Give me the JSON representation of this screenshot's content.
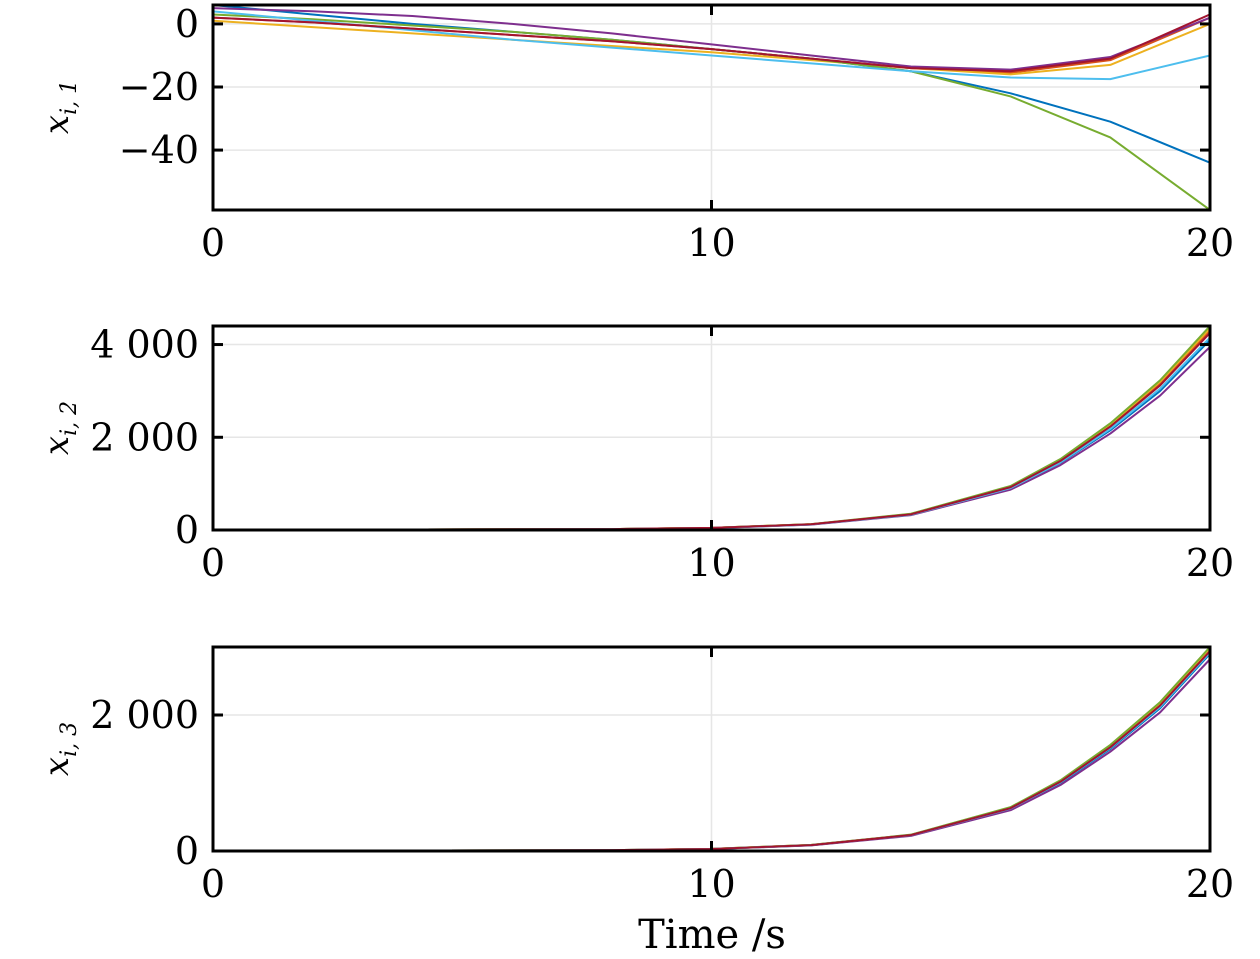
{
  "chart_data": [
    {
      "type": "line",
      "ylabel_main": "x",
      "ylabel_sub": "i, 1",
      "xlabel": "",
      "xlim": [
        0,
        20
      ],
      "ylim": [
        -59,
        6
      ],
      "grid": true,
      "xticks": [
        0,
        10,
        20
      ],
      "yticks": [
        0,
        -20,
        -40
      ],
      "xtick_labels": [
        "0",
        "10",
        "20"
      ],
      "ytick_labels": [
        "0",
        "−20",
        "−40"
      ],
      "series": [
        {
          "color": "#0072BD",
          "x": [
            0,
            2,
            4,
            6,
            8,
            10,
            12,
            14,
            16,
            18,
            20
          ],
          "y": [
            6,
            3,
            0,
            -2.5,
            -5,
            -8,
            -11,
            -15,
            -22,
            -31,
            -44
          ]
        },
        {
          "color": "#D95319",
          "x": [
            0,
            2,
            4,
            6,
            8,
            10,
            12,
            14,
            16,
            18,
            20
          ],
          "y": [
            2,
            0.5,
            -1.5,
            -3.5,
            -5.5,
            -8,
            -11,
            -14,
            -15.5,
            -11.5,
            2
          ]
        },
        {
          "color": "#EDB120",
          "x": [
            0,
            2,
            4,
            6,
            8,
            10,
            12,
            14,
            16,
            18,
            20
          ],
          "y": [
            1,
            -1,
            -3,
            -5,
            -7,
            -9,
            -11.5,
            -14,
            -16,
            -13,
            0
          ]
        },
        {
          "color": "#7E2F8E",
          "x": [
            0,
            2,
            4,
            6,
            8,
            10,
            12,
            14,
            16,
            18,
            20
          ],
          "y": [
            5,
            4,
            2.5,
            0,
            -3,
            -6.5,
            -10,
            -13.5,
            -14.5,
            -10.5,
            2
          ]
        },
        {
          "color": "#77AC30",
          "x": [
            0,
            2,
            4,
            6,
            8,
            10,
            12,
            14,
            16,
            18,
            20
          ],
          "y": [
            3,
            1.5,
            -0.5,
            -2.5,
            -5,
            -8,
            -11,
            -15,
            -23,
            -36,
            -59
          ]
        },
        {
          "color": "#4DBEEE",
          "x": [
            0,
            2,
            4,
            6,
            8,
            10,
            12,
            14,
            16,
            18,
            20
          ],
          "y": [
            4,
            1,
            -2,
            -5,
            -7.5,
            -10,
            -12.5,
            -15,
            -17,
            -17.5,
            -10
          ]
        },
        {
          "color": "#A2142F",
          "x": [
            0,
            2,
            4,
            6,
            8,
            10,
            12,
            14,
            16,
            18,
            20
          ],
          "y": [
            2,
            0.5,
            -1.5,
            -3.5,
            -5.5,
            -8,
            -11,
            -14,
            -15,
            -11,
            3
          ]
        }
      ]
    },
    {
      "type": "line",
      "ylabel_main": "x",
      "ylabel_sub": "i, 2",
      "xlabel": "",
      "xlim": [
        0,
        20
      ],
      "ylim": [
        0,
        4400
      ],
      "grid": true,
      "xticks": [
        0,
        10,
        20
      ],
      "yticks": [
        0,
        2000,
        4000
      ],
      "xtick_labels": [
        "0",
        "10",
        "20"
      ],
      "ytick_labels": [
        "0",
        "2 000",
        "4 000"
      ],
      "series": [
        {
          "color": "#0072BD",
          "x": [
            0,
            8,
            10,
            12,
            14,
            16,
            17,
            18,
            19,
            20
          ],
          "y": [
            0,
            20,
            45,
            120,
            330,
            900,
            1450,
            2150,
            3000,
            4100
          ]
        },
        {
          "color": "#D95319",
          "x": [
            0,
            8,
            10,
            12,
            14,
            16,
            17,
            18,
            19,
            20
          ],
          "y": [
            0,
            20,
            45,
            125,
            340,
            930,
            1500,
            2250,
            3150,
            4300
          ]
        },
        {
          "color": "#EDB120",
          "x": [
            0,
            8,
            10,
            12,
            14,
            16,
            17,
            18,
            19,
            20
          ],
          "y": [
            0,
            20,
            45,
            125,
            345,
            940,
            1520,
            2280,
            3200,
            4350
          ]
        },
        {
          "color": "#7E2F8E",
          "x": [
            0,
            8,
            10,
            12,
            14,
            16,
            17,
            18,
            19,
            20
          ],
          "y": [
            0,
            18,
            40,
            115,
            320,
            870,
            1400,
            2080,
            2900,
            3950
          ]
        },
        {
          "color": "#77AC30",
          "x": [
            0,
            8,
            10,
            12,
            14,
            16,
            17,
            18,
            19,
            20
          ],
          "y": [
            0,
            20,
            45,
            128,
            350,
            950,
            1530,
            2300,
            3230,
            4400
          ]
        },
        {
          "color": "#4DBEEE",
          "x": [
            0,
            8,
            10,
            12,
            14,
            16,
            17,
            18,
            19,
            20
          ],
          "y": [
            0,
            19,
            43,
            120,
            330,
            905,
            1460,
            2180,
            3050,
            4150
          ]
        },
        {
          "color": "#A2142F",
          "x": [
            0,
            8,
            10,
            12,
            14,
            16,
            17,
            18,
            19,
            20
          ],
          "y": [
            0,
            20,
            45,
            123,
            338,
            925,
            1490,
            2230,
            3120,
            4250
          ]
        }
      ]
    },
    {
      "type": "line",
      "ylabel_main": "x",
      "ylabel_sub": "i, 3",
      "xlabel": "Time /s",
      "xlim": [
        0,
        20
      ],
      "ylim": [
        0,
        3000
      ],
      "grid": true,
      "xticks": [
        0,
        10,
        20
      ],
      "yticks": [
        0,
        2000
      ],
      "xtick_labels": [
        "0",
        "10",
        "20"
      ],
      "ytick_labels": [
        "0",
        "2 000"
      ],
      "series": [
        {
          "color": "#0072BD",
          "x": [
            0,
            8,
            10,
            12,
            14,
            16,
            17,
            18,
            19,
            20
          ],
          "y": [
            0,
            12,
            30,
            85,
            230,
            620,
            1000,
            1500,
            2100,
            2900
          ]
        },
        {
          "color": "#D95319",
          "x": [
            0,
            8,
            10,
            12,
            14,
            16,
            17,
            18,
            19,
            20
          ],
          "y": [
            0,
            12,
            31,
            88,
            236,
            635,
            1025,
            1540,
            2160,
            2960
          ]
        },
        {
          "color": "#EDB120",
          "x": [
            0,
            8,
            10,
            12,
            14,
            16,
            17,
            18,
            19,
            20
          ],
          "y": [
            0,
            12,
            31,
            88,
            238,
            640,
            1030,
            1550,
            2170,
            2980
          ]
        },
        {
          "color": "#7E2F8E",
          "x": [
            0,
            8,
            10,
            12,
            14,
            16,
            17,
            18,
            19,
            20
          ],
          "y": [
            0,
            11,
            29,
            82,
            222,
            600,
            970,
            1460,
            2040,
            2820
          ]
        },
        {
          "color": "#77AC30",
          "x": [
            0,
            8,
            10,
            12,
            14,
            16,
            17,
            18,
            19,
            20
          ],
          "y": [
            0,
            12,
            32,
            90,
            240,
            645,
            1040,
            1560,
            2190,
            3000
          ]
        },
        {
          "color": "#4DBEEE",
          "x": [
            0,
            8,
            10,
            12,
            14,
            16,
            17,
            18,
            19,
            20
          ],
          "y": [
            0,
            12,
            30,
            86,
            232,
            625,
            1010,
            1515,
            2120,
            2920
          ]
        },
        {
          "color": "#A2142F",
          "x": [
            0,
            8,
            10,
            12,
            14,
            16,
            17,
            18,
            19,
            20
          ],
          "y": [
            0,
            12,
            30,
            87,
            234,
            630,
            1018,
            1525,
            2140,
            2940
          ]
        }
      ]
    }
  ]
}
